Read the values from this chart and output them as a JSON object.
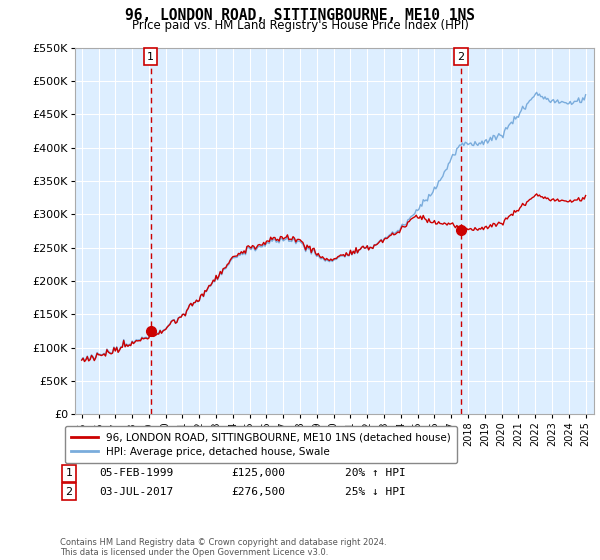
{
  "title": "96, LONDON ROAD, SITTINGBOURNE, ME10 1NS",
  "subtitle": "Price paid vs. HM Land Registry's House Price Index (HPI)",
  "legend_line1": "96, LONDON ROAD, SITTINGBOURNE, ME10 1NS (detached house)",
  "legend_line2": "HPI: Average price, detached house, Swale",
  "sale1_label": "1",
  "sale1_date": "05-FEB-1999",
  "sale1_price": "£125,000",
  "sale1_hpi": "20% ↑ HPI",
  "sale1_year": 1999.1,
  "sale1_value": 125000,
  "sale2_label": "2",
  "sale2_date": "03-JUL-2017",
  "sale2_price": "£276,500",
  "sale2_hpi": "25% ↓ HPI",
  "sale2_year": 2017.58,
  "sale2_value": 276500,
  "ylim": [
    0,
    550000
  ],
  "yticks": [
    0,
    50000,
    100000,
    150000,
    200000,
    250000,
    300000,
    350000,
    400000,
    450000,
    500000,
    550000
  ],
  "ytick_labels": [
    "£0",
    "£50K",
    "£100K",
    "£150K",
    "£200K",
    "£250K",
    "£300K",
    "£350K",
    "£400K",
    "£450K",
    "£500K",
    "£550K"
  ],
  "color_red": "#cc0000",
  "color_blue": "#7aacdc",
  "color_vline": "#cc0000",
  "chart_bg": "#ddeeff",
  "background_color": "#ffffff",
  "footer": "Contains HM Land Registry data © Crown copyright and database right 2024.\nThis data is licensed under the Open Government Licence v3.0.",
  "xlim_start": 1994.6,
  "xlim_end": 2025.5
}
